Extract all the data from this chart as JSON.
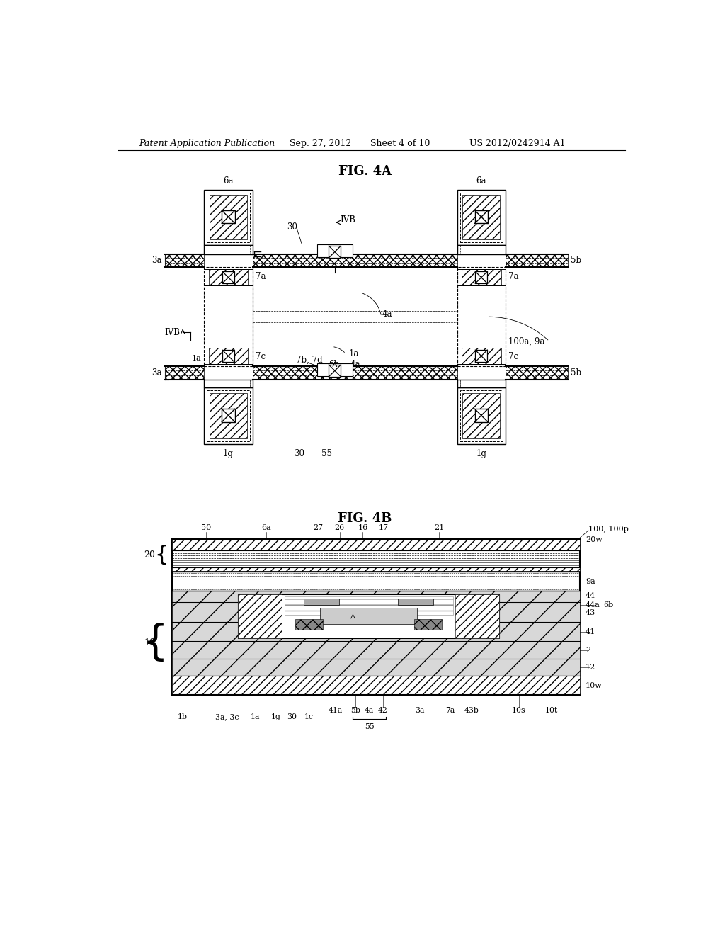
{
  "bg_color": "#ffffff",
  "header_text": "Patent Application Publication",
  "header_date": "Sep. 27, 2012",
  "header_sheet": "Sheet 4 of 10",
  "header_patent": "US 2012/0242914 A1",
  "fig4a_title": "FIG. 4A",
  "fig4b_title": "FIG. 4B"
}
